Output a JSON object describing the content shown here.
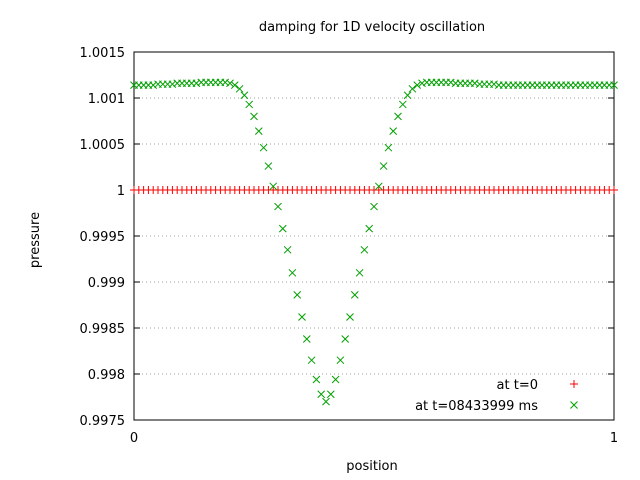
{
  "chart_data": {
    "type": "scatter",
    "title": "damping for 1D velocity oscillation",
    "xlabel": "position",
    "ylabel": "pressure",
    "xlim": [
      0,
      1
    ],
    "ylim": [
      0.9975,
      1.0015
    ],
    "xticks": [
      {
        "value": 0,
        "label": "0"
      },
      {
        "value": 1,
        "label": "1"
      }
    ],
    "yticks": [
      {
        "value": 0.9975,
        "label": "0.9975"
      },
      {
        "value": 0.998,
        "label": "0.998"
      },
      {
        "value": 0.9985,
        "label": "0.9985"
      },
      {
        "value": 0.999,
        "label": "0.999"
      },
      {
        "value": 0.9995,
        "label": "0.9995"
      },
      {
        "value": 1.0,
        "label": "1"
      },
      {
        "value": 1.0005,
        "label": "1.0005"
      },
      {
        "value": 1.001,
        "label": "1.001"
      },
      {
        "value": 1.0015,
        "label": "1.0015"
      }
    ],
    "grid": "horizontal-dotted",
    "legend_position": "bottom-right",
    "series": [
      {
        "name": "at t=0",
        "marker": "plus",
        "color": "#ff0000",
        "x": [
          0.0,
          0.01,
          0.02,
          0.03,
          0.04,
          0.05,
          0.06,
          0.07,
          0.08,
          0.09,
          0.1,
          0.11,
          0.12,
          0.13,
          0.14,
          0.15,
          0.16,
          0.17,
          0.18,
          0.19,
          0.2,
          0.21,
          0.22,
          0.23,
          0.24,
          0.25,
          0.26,
          0.27,
          0.28,
          0.29,
          0.3,
          0.31,
          0.32,
          0.33,
          0.34,
          0.35,
          0.36,
          0.37,
          0.38,
          0.39,
          0.4,
          0.41,
          0.42,
          0.43,
          0.44,
          0.45,
          0.46,
          0.47,
          0.48,
          0.49,
          0.5,
          0.51,
          0.52,
          0.53,
          0.54,
          0.55,
          0.56,
          0.57,
          0.58,
          0.59,
          0.6,
          0.61,
          0.62,
          0.63,
          0.64,
          0.65,
          0.66,
          0.67,
          0.68,
          0.69,
          0.7,
          0.71,
          0.72,
          0.73,
          0.74,
          0.75,
          0.76,
          0.77,
          0.78,
          0.79,
          0.8,
          0.81,
          0.82,
          0.83,
          0.84,
          0.85,
          0.86,
          0.87,
          0.88,
          0.89,
          0.9,
          0.91,
          0.92,
          0.93,
          0.94,
          0.95,
          0.96,
          0.97,
          0.98,
          0.99,
          1.0
        ],
        "y": [
          1,
          1,
          1,
          1,
          1,
          1,
          1,
          1,
          1,
          1,
          1,
          1,
          1,
          1,
          1,
          1,
          1,
          1,
          1,
          1,
          1,
          1,
          1,
          1,
          1,
          1,
          1,
          1,
          1,
          1,
          1,
          1,
          1,
          1,
          1,
          1,
          1,
          1,
          1,
          1,
          1,
          1,
          1,
          1,
          1,
          1,
          1,
          1,
          1,
          1,
          1,
          1,
          1,
          1,
          1,
          1,
          1,
          1,
          1,
          1,
          1,
          1,
          1,
          1,
          1,
          1,
          1,
          1,
          1,
          1,
          1,
          1,
          1,
          1,
          1,
          1,
          1,
          1,
          1,
          1,
          1,
          1,
          1,
          1,
          1,
          1,
          1,
          1,
          1,
          1,
          1,
          1,
          1,
          1,
          1,
          1,
          1,
          1,
          1,
          1,
          1
        ]
      },
      {
        "name": "at t=08433999 ms",
        "marker": "cross",
        "color": "#00a000",
        "x": [
          0.0,
          0.01,
          0.02,
          0.03,
          0.04,
          0.05,
          0.06,
          0.07,
          0.08,
          0.09,
          0.1,
          0.11,
          0.12,
          0.13,
          0.14,
          0.15,
          0.16,
          0.17,
          0.18,
          0.19,
          0.2,
          0.21,
          0.22,
          0.23,
          0.24,
          0.25,
          0.26,
          0.27,
          0.28,
          0.29,
          0.3,
          0.31,
          0.32,
          0.33,
          0.34,
          0.35,
          0.36,
          0.37,
          0.38,
          0.39,
          0.4,
          0.41,
          0.42,
          0.43,
          0.44,
          0.45,
          0.46,
          0.47,
          0.48,
          0.49,
          0.5,
          0.51,
          0.52,
          0.53,
          0.54,
          0.55,
          0.56,
          0.57,
          0.58,
          0.59,
          0.6,
          0.61,
          0.62,
          0.63,
          0.64,
          0.65,
          0.66,
          0.67,
          0.68,
          0.69,
          0.7,
          0.71,
          0.72,
          0.73,
          0.74,
          0.75,
          0.76,
          0.77,
          0.78,
          0.79,
          0.8,
          0.81,
          0.82,
          0.83,
          0.84,
          0.85,
          0.86,
          0.87,
          0.88,
          0.89,
          0.9,
          0.91,
          0.92,
          0.93,
          0.94,
          0.95,
          0.96,
          0.97,
          0.98,
          0.99,
          1.0
        ],
        "y": [
          1.00114,
          1.00114,
          1.00114,
          1.00114,
          1.00114,
          1.00115,
          1.00115,
          1.00115,
          1.00115,
          1.00116,
          1.00116,
          1.00116,
          1.00116,
          1.00116,
          1.00117,
          1.00117,
          1.00117,
          1.00117,
          1.00117,
          1.00117,
          1.00116,
          1.00114,
          1.0011,
          1.00103,
          1.00093,
          1.0008,
          1.00064,
          1.00046,
          1.00026,
          1.00004,
          0.99982,
          0.99958,
          0.99935,
          0.9991,
          0.99886,
          0.99862,
          0.99838,
          0.99815,
          0.99794,
          0.99778,
          0.9977,
          0.99778,
          0.99794,
          0.99815,
          0.99838,
          0.99862,
          0.99886,
          0.9991,
          0.99935,
          0.99958,
          0.99982,
          1.00004,
          1.00026,
          1.00046,
          1.00064,
          1.0008,
          1.00093,
          1.00103,
          1.0011,
          1.00114,
          1.00116,
          1.00117,
          1.00117,
          1.00117,
          1.00117,
          1.00117,
          1.00117,
          1.00116,
          1.00116,
          1.00116,
          1.00116,
          1.00116,
          1.00115,
          1.00115,
          1.00115,
          1.00115,
          1.00114,
          1.00114,
          1.00114,
          1.00114,
          1.00114,
          1.00114,
          1.00114,
          1.00114,
          1.00114,
          1.00114,
          1.00114,
          1.00114,
          1.00114,
          1.00114,
          1.00114,
          1.00114,
          1.00114,
          1.00114,
          1.00114,
          1.00114,
          1.00114,
          1.00114,
          1.00114,
          1.00114,
          1.00114
        ]
      }
    ]
  }
}
